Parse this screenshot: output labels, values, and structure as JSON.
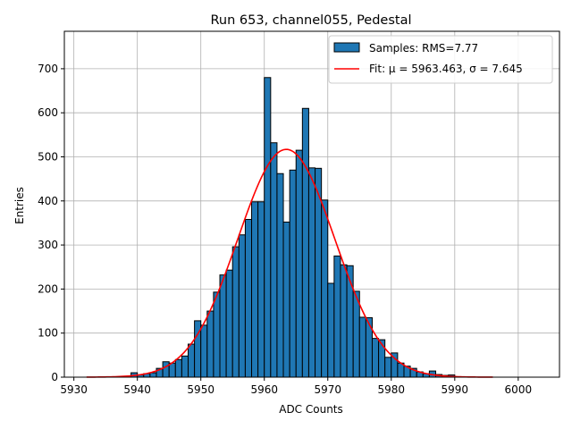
{
  "chart_data": {
    "type": "bar",
    "title": "Run 653, channel055, Pedestal",
    "xlabel": "ADC Counts",
    "ylabel": "Entries",
    "xlim": [
      5928.5,
      6006.5
    ],
    "ylim": [
      0,
      785
    ],
    "xticks": [
      5930,
      5940,
      5950,
      5960,
      5970,
      5980,
      5990,
      6000
    ],
    "yticks": [
      0,
      100,
      200,
      300,
      400,
      500,
      600,
      700
    ],
    "grid": true,
    "legend_position": "top-right",
    "colors": {
      "bars": "#1f77b4",
      "bar_edge": "#000000",
      "fit": "#ff0000",
      "grid": "#b0b0b0"
    },
    "histogram": {
      "name": "Samples: RMS=7.77",
      "bin_width": 1,
      "bin_starts": [
        5939,
        5940,
        5941,
        5942,
        5943,
        5944,
        5945,
        5946,
        5947,
        5948,
        5949,
        5950,
        5951,
        5952,
        5953,
        5954,
        5955,
        5956,
        5957,
        5958,
        5959,
        5960,
        5961,
        5962,
        5963,
        5964,
        5965,
        5966,
        5967,
        5968,
        5969,
        5970,
        5971,
        5972,
        5973,
        5974,
        5975,
        5976,
        5977,
        5978,
        5979,
        5980,
        5981,
        5982,
        5983,
        5984,
        5985,
        5986,
        5987,
        5988,
        5989
      ],
      "counts": [
        10,
        5,
        8,
        10,
        20,
        35,
        32,
        40,
        48,
        75,
        128,
        118,
        150,
        193,
        232,
        243,
        296,
        323,
        358,
        398,
        398,
        680,
        532,
        462,
        352,
        470,
        515,
        610,
        475,
        474,
        402,
        213,
        275,
        255,
        253,
        195,
        136,
        135,
        88,
        85,
        45,
        55,
        32,
        25,
        20,
        12,
        8,
        14,
        6,
        4,
        5
      ]
    },
    "fit": {
      "name": "Fit: μ = 5963.463, σ = 7.645",
      "mu": 5963.463,
      "sigma": 7.645,
      "amplitude": 517,
      "x_range": [
        5932,
        5996
      ]
    }
  }
}
